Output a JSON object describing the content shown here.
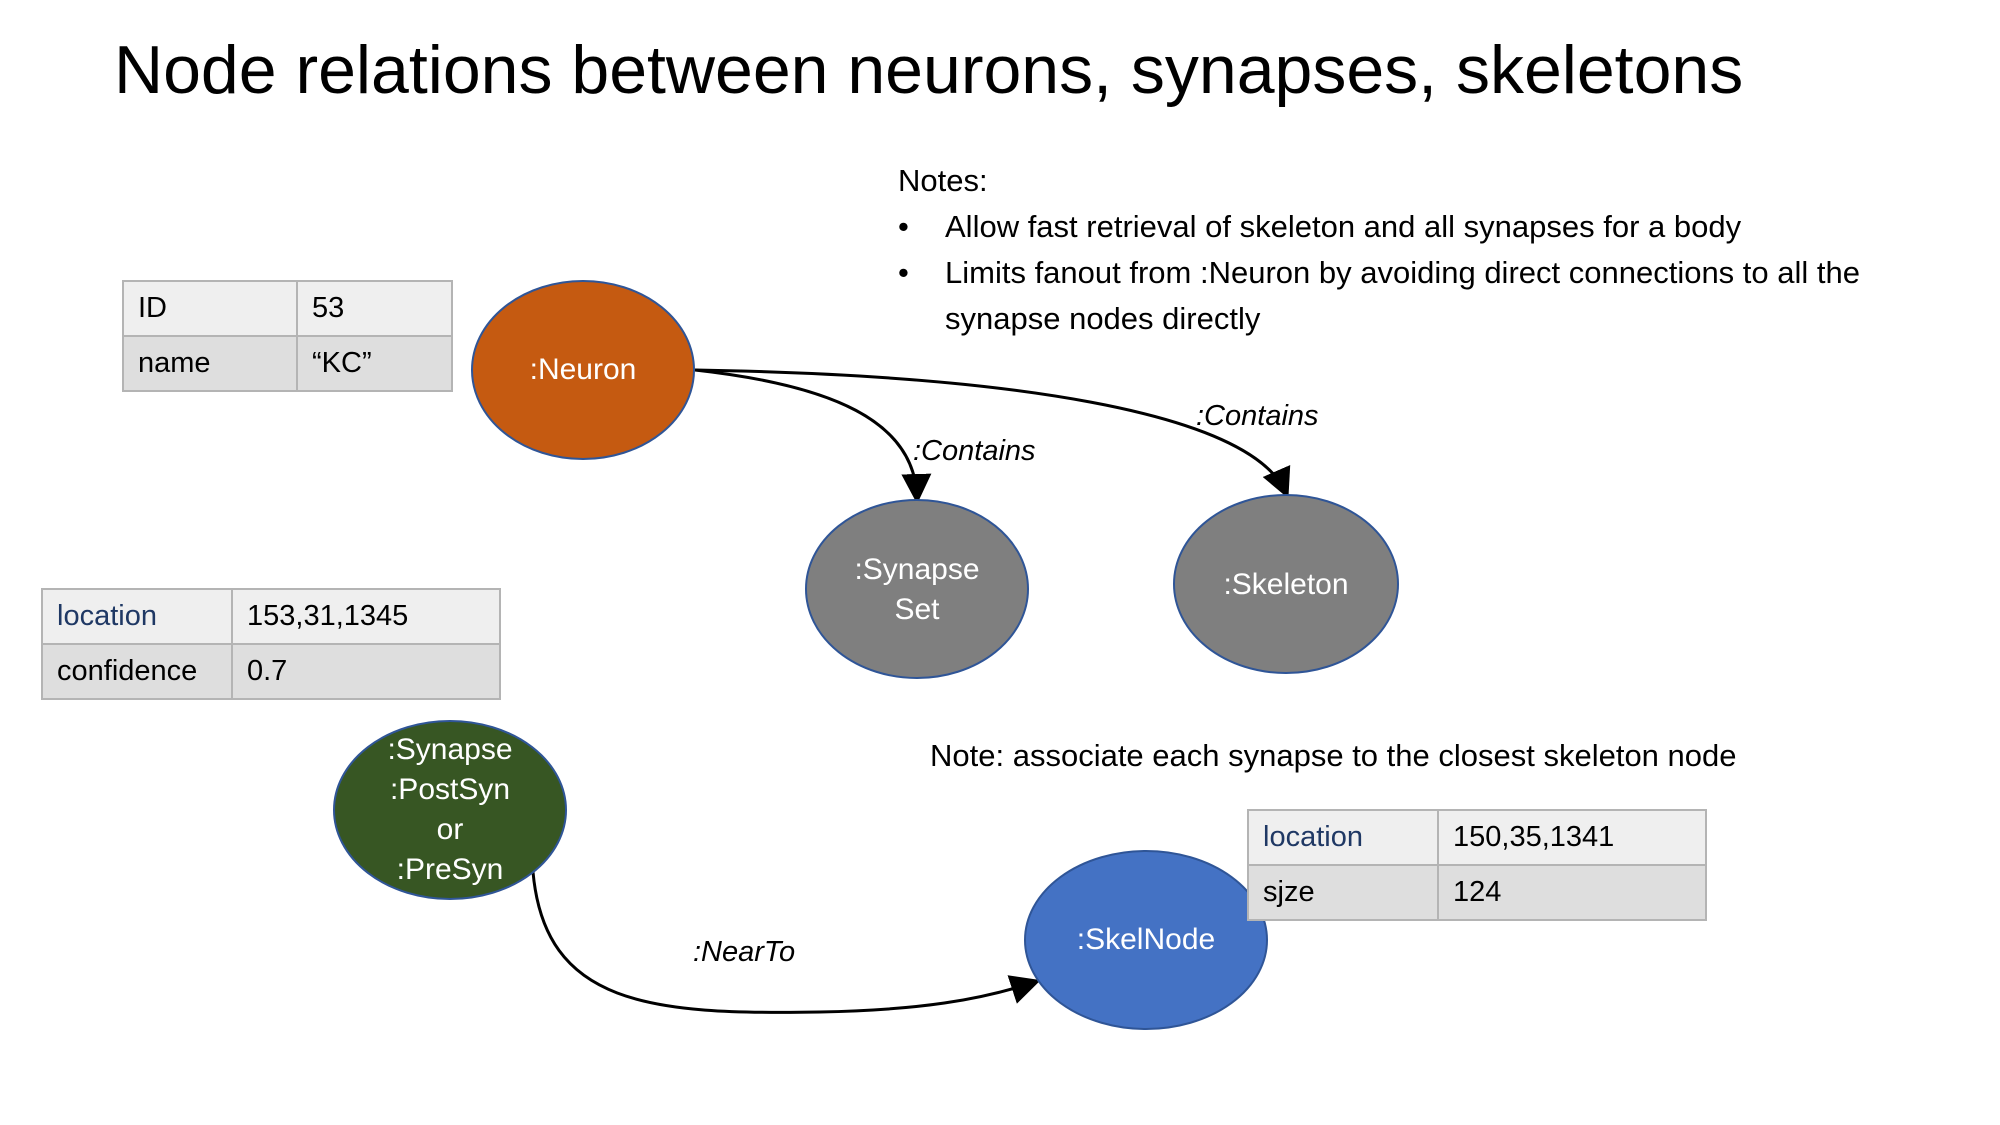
{
  "title": "Node relations between neurons, synapses, skeletons",
  "nodes": {
    "neuron": {
      "label": ":Neuron",
      "color": "#c55a11"
    },
    "synapse_set": {
      "label_line1": ":Synapse",
      "label_line2": "Set",
      "color": "#7f7f7f"
    },
    "skeleton": {
      "label": ":Skeleton",
      "color": "#7f7f7f"
    },
    "synapse": {
      "line1": ":Synapse",
      "line2": ":PostSyn",
      "line3": "or",
      "line4": ":PreSyn",
      "color": "#375623"
    },
    "skelnode": {
      "label": ":SkelNode",
      "color": "#4472c4"
    }
  },
  "edges": {
    "contains_synapse_set": ":Contains",
    "contains_skeleton": ":Contains",
    "near_to": ":NearTo"
  },
  "tables": {
    "neuron_props": [
      {
        "key": "ID",
        "value": "53"
      },
      {
        "key": "name",
        "value": "“KC”"
      }
    ],
    "synapse_props": [
      {
        "key": "location",
        "value": "153,31,1345"
      },
      {
        "key": "confidence",
        "value": "0.7"
      }
    ],
    "skelnode_props": [
      {
        "key": "location",
        "value": "150,35,1341"
      },
      {
        "key": "sjze",
        "value": "124"
      }
    ]
  },
  "notes": {
    "heading": "Notes:",
    "bullet_glyph": "•",
    "items": [
      "Allow fast retrieval of skeleton and all synapses for a body",
      "Limits fanout from :Neuron by avoiding direct connections to all the synapse nodes directly"
    ]
  },
  "note_skeleton": "Note: associate each synapse to the closest skeleton node"
}
